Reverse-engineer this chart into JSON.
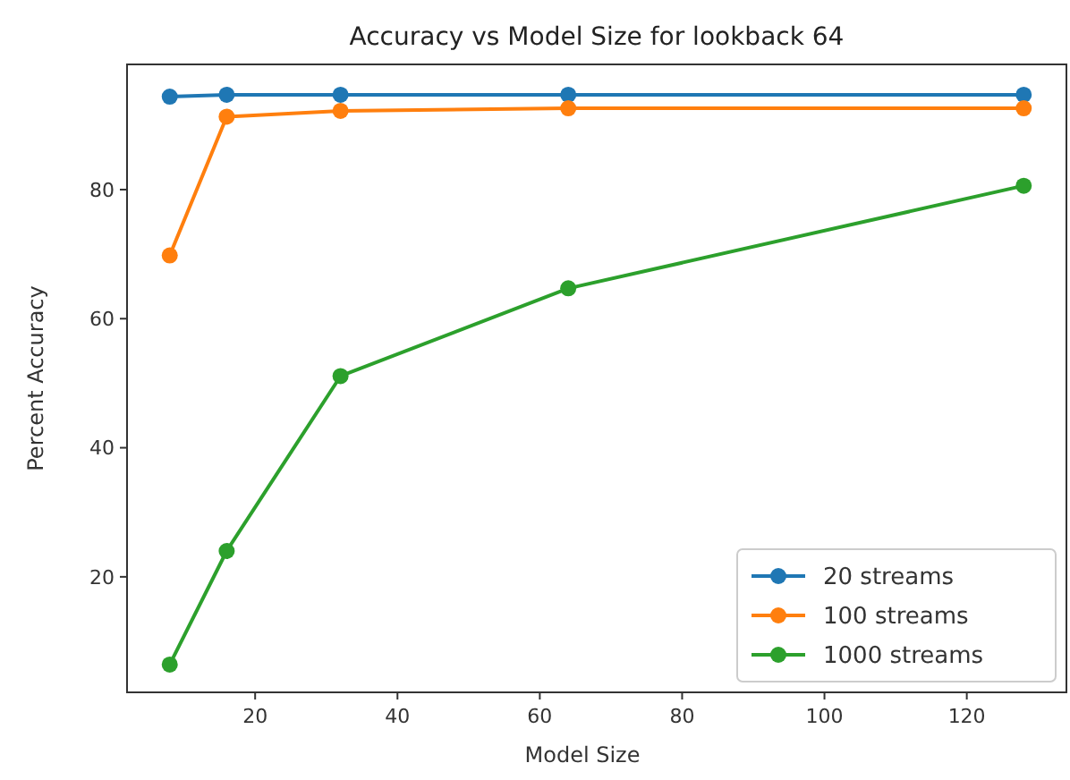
{
  "chart_data": {
    "type": "line",
    "title": "Accuracy vs Model Size for lookback 64",
    "xlabel": "Model Size",
    "ylabel": "Percent Accuracy",
    "x": [
      8,
      16,
      32,
      64,
      128
    ],
    "series": [
      {
        "name": "20 streams",
        "color": "#1f77b4",
        "values": [
          94.4,
          94.7,
          94.7,
          94.7,
          94.7
        ]
      },
      {
        "name": "100 streams",
        "color": "#ff7f0e",
        "values": [
          69.8,
          91.3,
          92.2,
          92.6,
          92.6
        ]
      },
      {
        "name": "1000 streams",
        "color": "#2ca02c",
        "values": [
          6.4,
          24,
          51.1,
          64.7,
          80.6
        ]
      }
    ],
    "xlim": [
      2,
      134
    ],
    "xticks": [
      20,
      40,
      60,
      80,
      100,
      120
    ],
    "ylim": [
      2.1,
      99.4
    ],
    "yticks": [
      20,
      40,
      60,
      80
    ],
    "grid": false,
    "legend": "bottom right",
    "marker": "circle",
    "line_style": "solid"
  }
}
